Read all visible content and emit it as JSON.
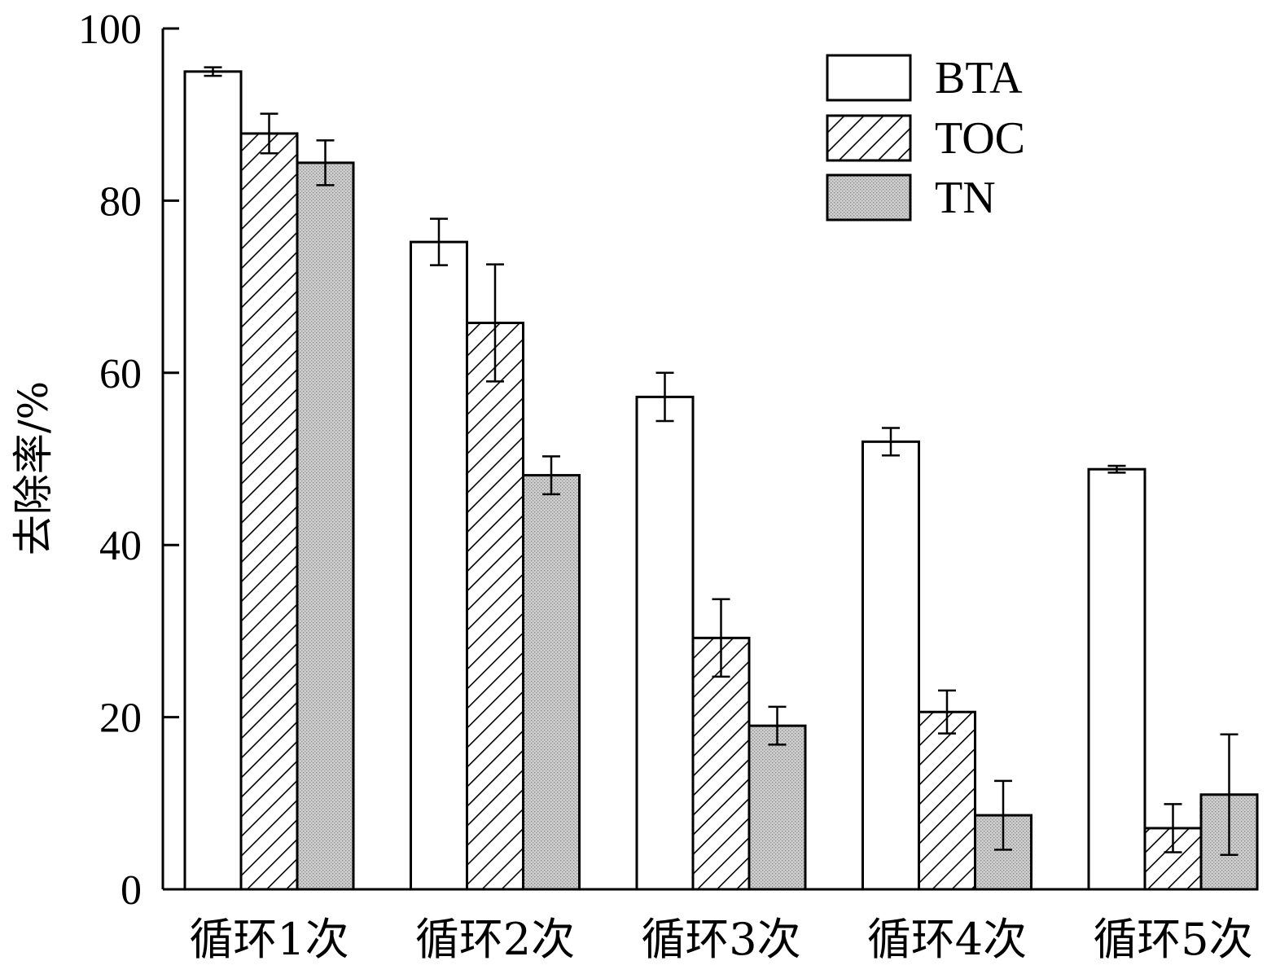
{
  "chart_data": {
    "type": "bar",
    "title": "",
    "xlabel": "",
    "ylabel": "去除率/%",
    "ylim": [
      0,
      100
    ],
    "yticks": [
      "0",
      "20",
      "40",
      "60",
      "80",
      "100"
    ],
    "categories": [
      "循环1次",
      "循环2次",
      "循环3次",
      "循环4次",
      "循环5次"
    ],
    "series": [
      {
        "name": "BTA",
        "pattern": "none",
        "fill": "#ffffff",
        "values": [
          95.0,
          75.2,
          57.2,
          52.0,
          48.8
        ],
        "errors": [
          0.5,
          2.7,
          2.8,
          1.6,
          0.4
        ]
      },
      {
        "name": "TOC",
        "pattern": "diagonal-hatch",
        "fill": "#ffffff",
        "values": [
          87.8,
          65.8,
          29.2,
          20.6,
          7.1
        ],
        "errors": [
          2.3,
          6.8,
          4.5,
          2.5,
          2.8
        ]
      },
      {
        "name": "TN",
        "pattern": "dotted-gray",
        "fill": "#c8c8c8",
        "values": [
          84.4,
          48.1,
          19.0,
          8.6,
          11.0
        ],
        "errors": [
          2.6,
          2.2,
          2.2,
          4.0,
          7.0
        ]
      }
    ],
    "legend_position": "top-right",
    "grid": false
  }
}
